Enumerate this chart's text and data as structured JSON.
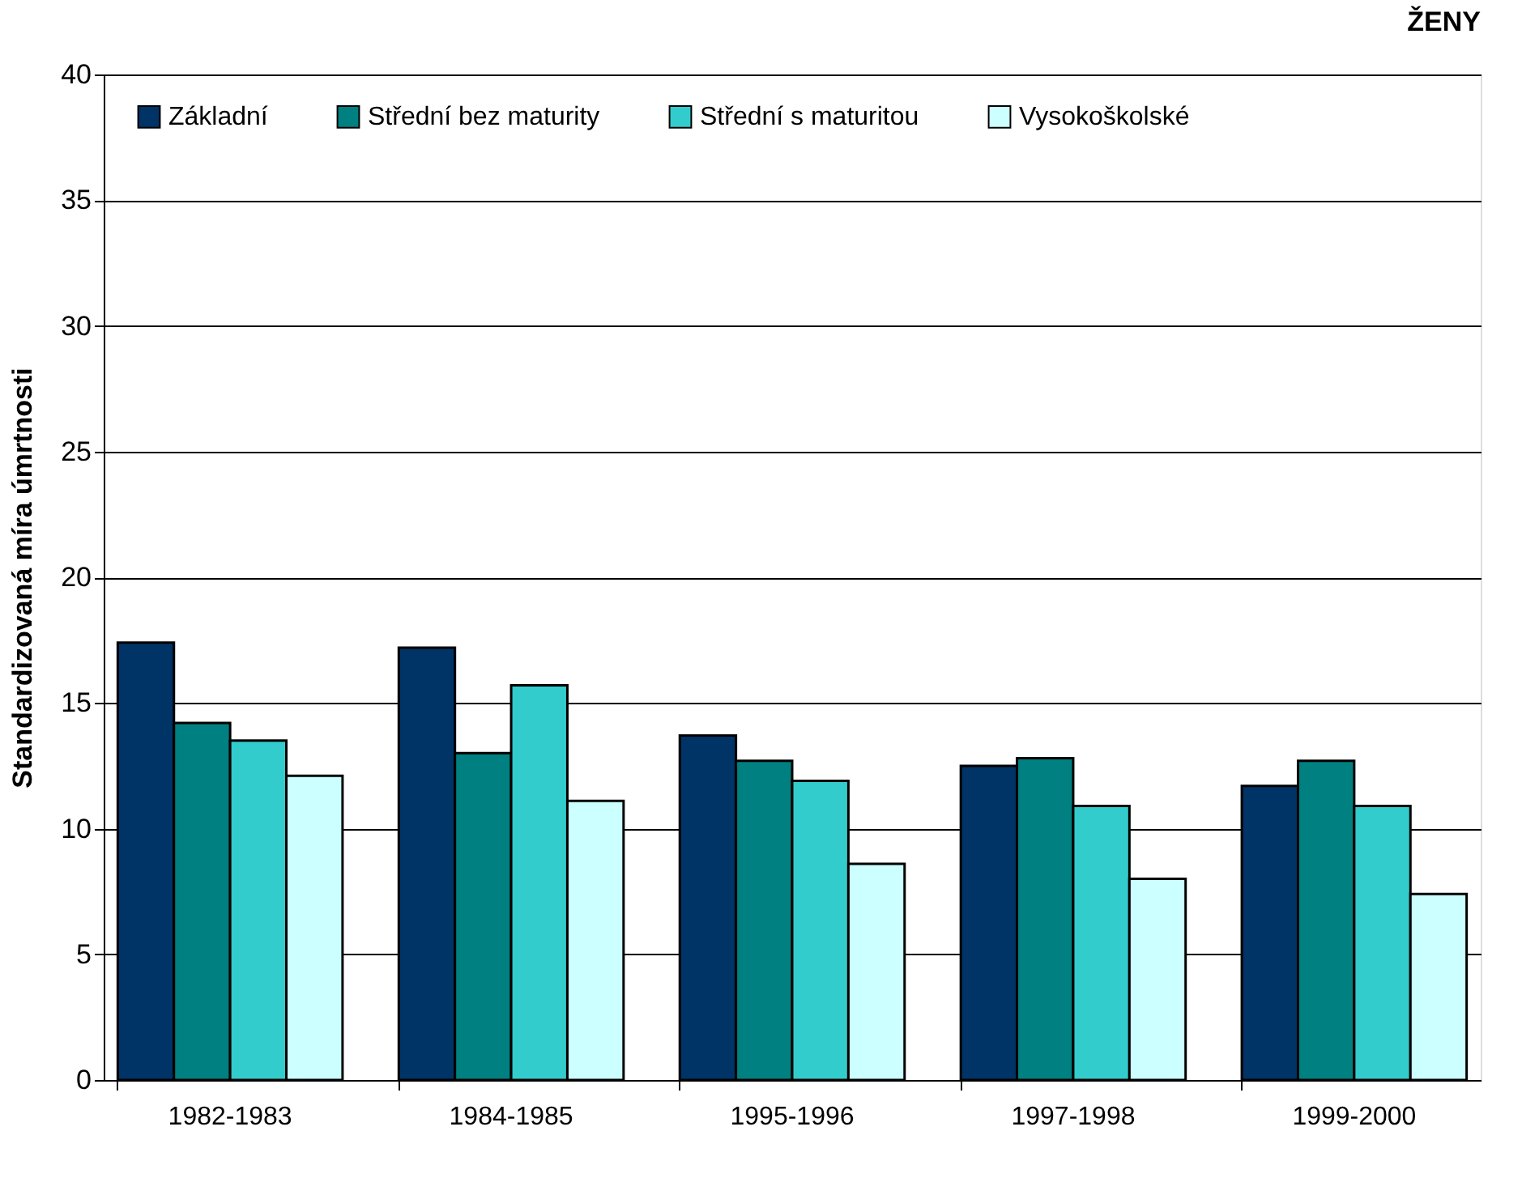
{
  "chart_data": {
    "type": "bar",
    "title": "ŽENY",
    "ylabel": "Standardizovaná míra úmrtnosti",
    "categories": [
      "1982-1983",
      "1984-1985",
      "1995-1996",
      "1997-1998",
      "1999-2000"
    ],
    "series": [
      {
        "name": "Základní",
        "color": "#003366",
        "values": [
          17.4,
          17.2,
          13.7,
          12.5,
          11.7
        ]
      },
      {
        "name": "Střední bez maturity",
        "color": "#008080",
        "values": [
          14.2,
          13.0,
          12.7,
          12.8,
          12.7
        ]
      },
      {
        "name": "Střední s maturitou",
        "color": "#33cccc",
        "values": [
          13.5,
          15.7,
          11.9,
          10.9,
          10.9
        ]
      },
      {
        "name": "Vysokoškolské",
        "color": "#ccffff",
        "values": [
          12.1,
          11.1,
          8.6,
          8.0,
          7.4
        ]
      }
    ],
    "ylim": [
      0,
      40
    ],
    "yticks": [
      0,
      5,
      10,
      15,
      20,
      25,
      30,
      35,
      40
    ],
    "grid": "y",
    "legend": "top"
  }
}
